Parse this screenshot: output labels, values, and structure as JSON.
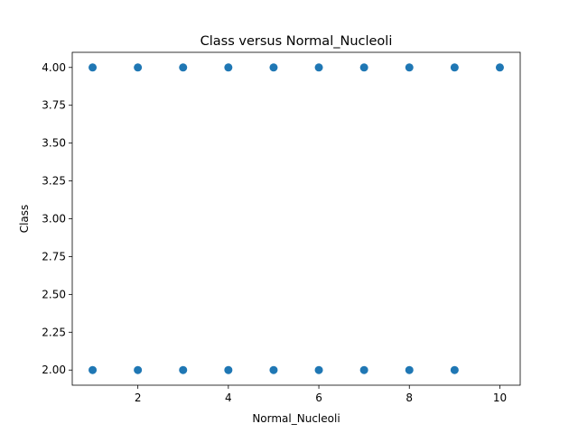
{
  "chart_data": {
    "type": "scatter",
    "title": "Class versus Normal_Nucleoli",
    "xlabel": "Normal_Nucleoli",
    "ylabel": "Class",
    "xlim": [
      0.55,
      10.45
    ],
    "ylim": [
      1.9,
      4.1
    ],
    "x_ticks": [
      2,
      4,
      6,
      8,
      10
    ],
    "y_ticks": [
      2.0,
      2.25,
      2.5,
      2.75,
      3.0,
      3.25,
      3.5,
      3.75,
      4.0
    ],
    "y_tick_labels": [
      "2.00",
      "2.25",
      "2.50",
      "2.75",
      "3.00",
      "3.25",
      "3.50",
      "3.75",
      "4.00"
    ],
    "x_tick_labels": [
      "2",
      "4",
      "6",
      "8",
      "10"
    ],
    "grid": false,
    "marker_color": "#1f77b4",
    "points": [
      {
        "x": 1,
        "y": 4
      },
      {
        "x": 2,
        "y": 4
      },
      {
        "x": 3,
        "y": 4
      },
      {
        "x": 4,
        "y": 4
      },
      {
        "x": 5,
        "y": 4
      },
      {
        "x": 6,
        "y": 4
      },
      {
        "x": 7,
        "y": 4
      },
      {
        "x": 8,
        "y": 4
      },
      {
        "x": 9,
        "y": 4
      },
      {
        "x": 10,
        "y": 4
      },
      {
        "x": 1,
        "y": 2
      },
      {
        "x": 2,
        "y": 2
      },
      {
        "x": 3,
        "y": 2
      },
      {
        "x": 4,
        "y": 2
      },
      {
        "x": 5,
        "y": 2
      },
      {
        "x": 6,
        "y": 2
      },
      {
        "x": 7,
        "y": 2
      },
      {
        "x": 8,
        "y": 2
      },
      {
        "x": 9,
        "y": 2
      }
    ]
  }
}
